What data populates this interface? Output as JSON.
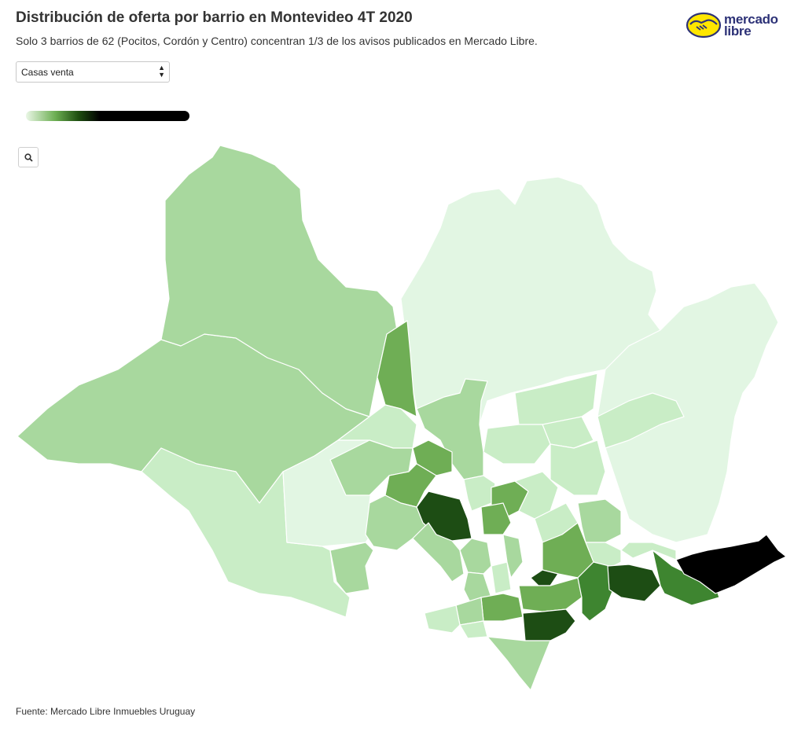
{
  "header": {
    "title": "Distribución de oferta por barrio en Montevideo 4T 2020",
    "subtitle": "Solo 3 barrios de 62 (Pocitos, Cordón y Centro) concentran 1/3 de los avisos publicados en Mercado Libre."
  },
  "logo": {
    "line1": "mercado",
    "line2": "libre",
    "icon": "handshake-icon",
    "colors": {
      "oval": "#ffe600",
      "text": "#2d3277"
    }
  },
  "filter": {
    "selected": "Casas venta"
  },
  "legend": {
    "colors": [
      "#eaf7e6",
      "#6cae52",
      "#1e4f10",
      "#000000"
    ]
  },
  "zoom": {
    "icon": "search-icon"
  },
  "map": {
    "region": "Montevideo",
    "neighbourhood_count": 62,
    "color_scale": {
      "lightest": "#e2f6e3",
      "light": "#c9edc6",
      "medium_light": "#a8d89e",
      "medium": "#6fae55",
      "dark": "#3e8530",
      "darker": "#1d4d14",
      "darkest": "#000000"
    }
  },
  "footer": {
    "source": "Fuente: Mercado Libre Inmuebles Uruguay"
  }
}
